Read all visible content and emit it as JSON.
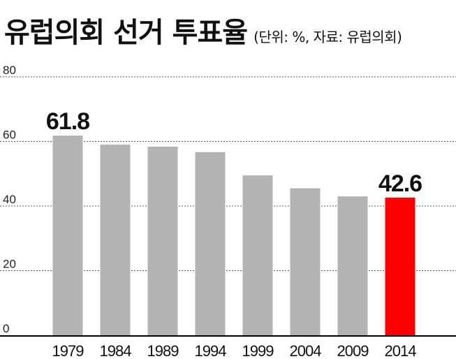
{
  "header": {
    "title": "유럽의회 선거 투표율",
    "subtitle": "(단위: %, 자료: 유럽의회)"
  },
  "colors": {
    "bar_default": "#b3b3b3",
    "bar_highlight": "#ff0000",
    "grid": "#555555",
    "axis": "#000000"
  },
  "chart_data": {
    "type": "bar",
    "title": "유럽의회 선거 투표율",
    "subtitle": "(단위: %, 자료: 유럽의회)",
    "categories": [
      "1979",
      "1984",
      "1989",
      "1994",
      "1999",
      "2004",
      "2009",
      "2014"
    ],
    "values": [
      61.8,
      59.0,
      58.4,
      56.7,
      49.5,
      45.5,
      43.0,
      42.6
    ],
    "highlight_index": 7,
    "data_labels": [
      {
        "index": 0,
        "text": "61.8"
      },
      {
        "index": 7,
        "text": "42.6"
      }
    ],
    "ylim": [
      0,
      80
    ],
    "yticks": [
      "80",
      "60",
      "40",
      "20",
      "0"
    ],
    "ytick_values": [
      80,
      60,
      40,
      20,
      0
    ],
    "grid": "horizontal dashed",
    "xlabel": "",
    "ylabel": ""
  }
}
